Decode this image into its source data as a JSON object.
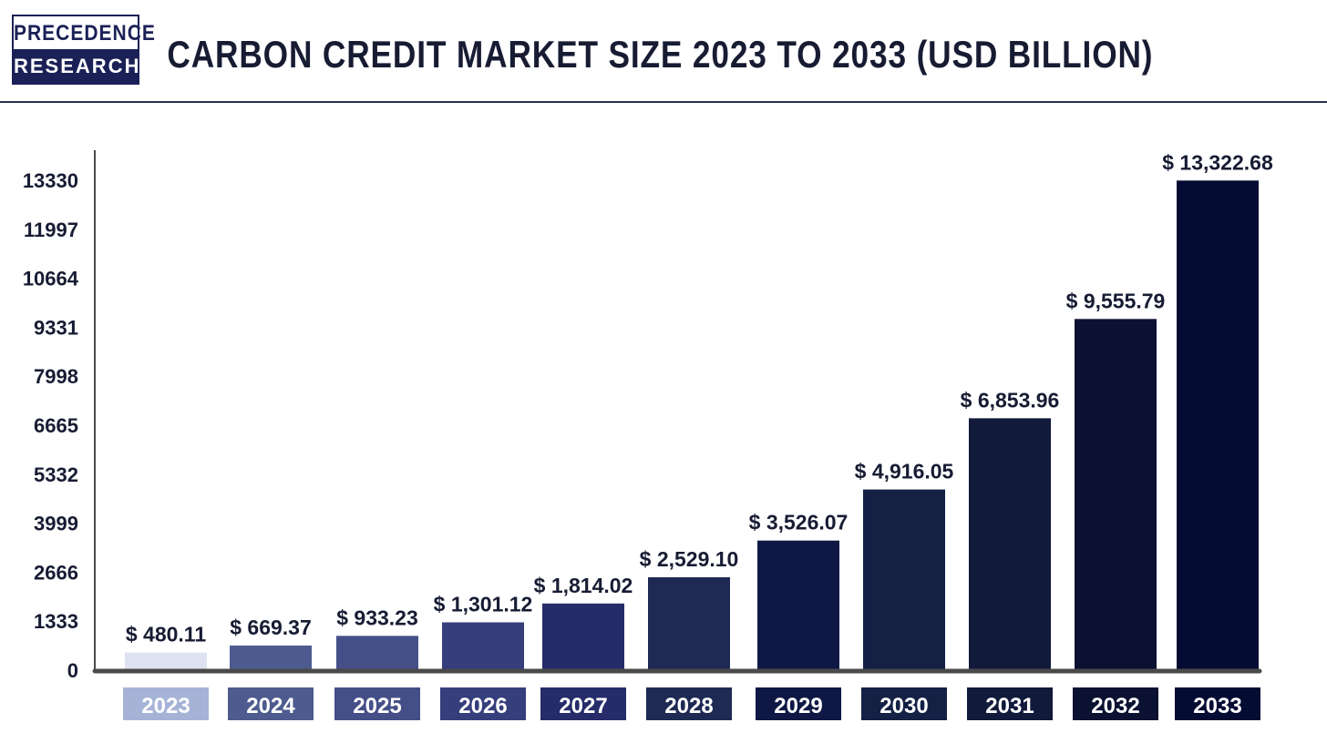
{
  "header": {
    "logo_top": "PRECEDENCE",
    "logo_bottom": "RESEARCH",
    "title": "CARBON CREDIT MARKET SIZE 2023 TO 2033 (USD BILLION)"
  },
  "chart_data": {
    "type": "bar",
    "title": "CARBON CREDIT MARKET SIZE 2023 TO 2033 (USD BILLION)",
    "xlabel": "",
    "ylabel": "",
    "categories": [
      "2023",
      "2024",
      "2025",
      "2026",
      "2027",
      "2028",
      "2029",
      "2030",
      "2031",
      "2032",
      "2033"
    ],
    "values": [
      480.11,
      669.37,
      933.23,
      1301.12,
      1814.02,
      2529.1,
      3526.07,
      4916.05,
      6853.96,
      9555.79,
      13322.68
    ],
    "data_labels": [
      "$ 480.11",
      "$ 669.37",
      "$ 933.23",
      "$ 1,301.12",
      "$ 1,814.02",
      "$ 2,529.10",
      "$ 3,526.07",
      "$ 4,916.05",
      "$ 6,853.96",
      "$ 9,555.79",
      "$ 13,322.68"
    ],
    "yticks": [
      0,
      1333,
      2666,
      3999,
      5332,
      6665,
      7998,
      9331,
      10664,
      11997,
      13330
    ],
    "ylim": [
      0,
      13330
    ],
    "grid": false,
    "legend": "none",
    "bar_colors": [
      "#dfe2f0",
      "#4e5b8e",
      "#454f87",
      "#363e7b",
      "#262c69",
      "#1e2a53",
      "#0f1844",
      "#142044",
      "#111a3b",
      "#0a1131",
      "#050c33"
    ],
    "label_colors": [
      "#a6b3d7",
      "#4e5b8e",
      "#454f87",
      "#363e7b",
      "#262c69",
      "#1e2a53",
      "#0f1844",
      "#142044",
      "#111a3b",
      "#0a1131",
      "#050c33"
    ],
    "axis_color": "#4a4a4a",
    "text_color": "#171c33"
  }
}
